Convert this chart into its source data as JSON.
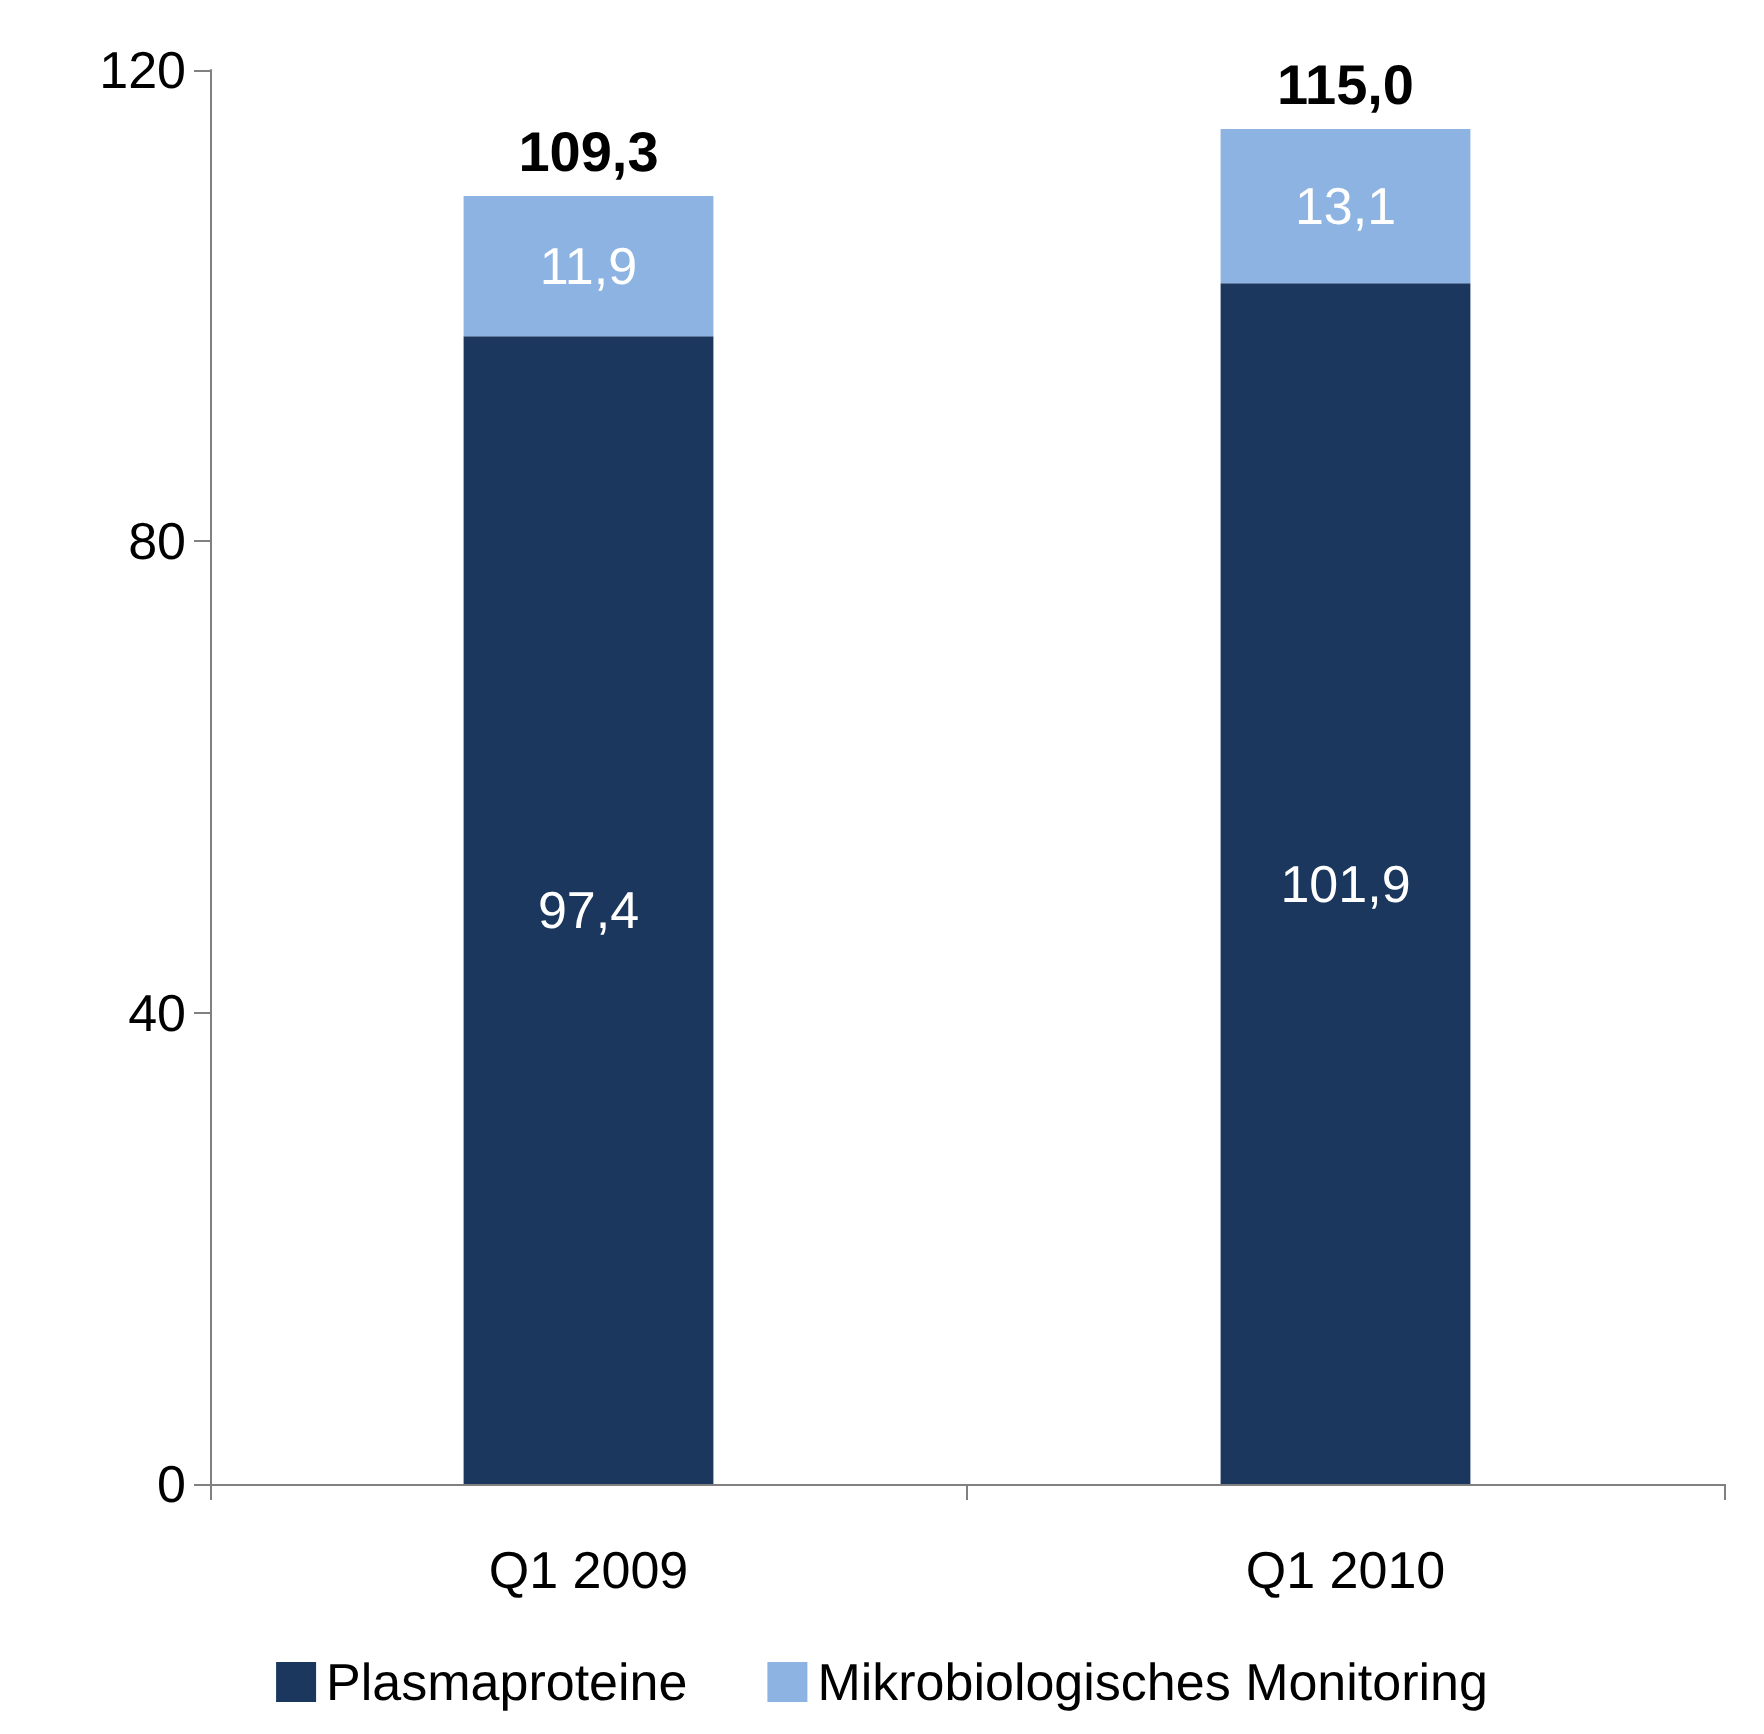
{
  "chart_data": {
    "type": "bar",
    "stacked": true,
    "categories": [
      "Q1 2009",
      "Q1 2010"
    ],
    "series": [
      {
        "name": "Plasmaproteine",
        "color": "#1b375e",
        "values": [
          97.4,
          101.9
        ],
        "value_labels": [
          "97,4",
          "101,9"
        ]
      },
      {
        "name": "Mikrobiologisches Monitoring",
        "color": "#8db3e2",
        "values": [
          11.9,
          13.1
        ],
        "value_labels": [
          "11,9",
          "13,1"
        ]
      }
    ],
    "totals": [
      "109,3",
      "115,0"
    ],
    "ylim": [
      0,
      120
    ],
    "yticks": [
      0,
      40,
      80,
      120
    ],
    "grid": false,
    "legend": "bottom"
  }
}
